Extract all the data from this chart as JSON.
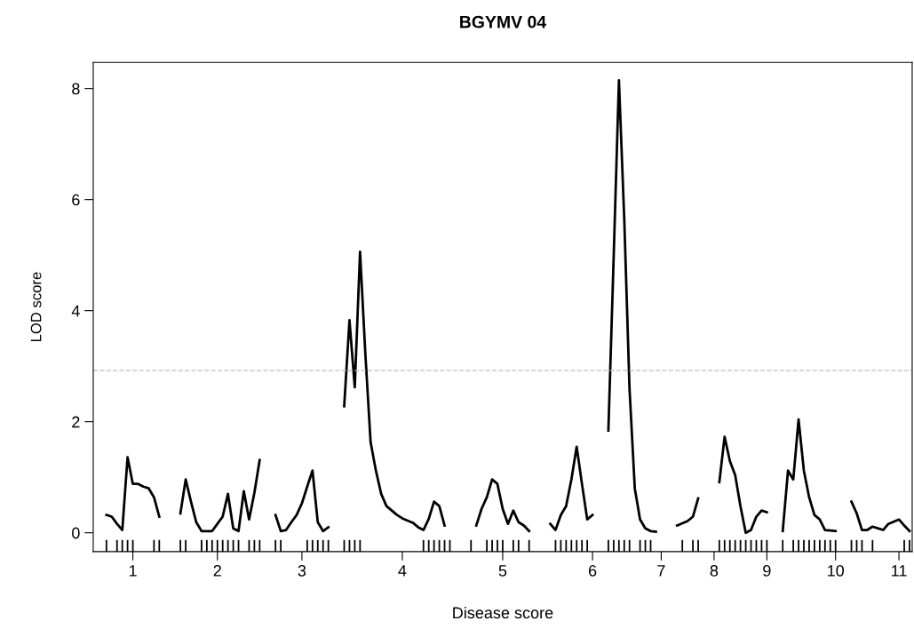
{
  "chart_data": {
    "type": "line",
    "title": "BGYMV 04",
    "xlabel": "Disease score",
    "ylabel": "LOD score",
    "categories": [
      null,
      null,
      null,
      null,
      null,
      null,
      null,
      "1",
      null,
      null,
      null,
      null,
      null,
      null,
      null,
      null,
      null,
      null,
      null,
      null,
      null,
      null,
      null,
      "2",
      null,
      null,
      null,
      null,
      null,
      null,
      null,
      null,
      null,
      null,
      null,
      null,
      null,
      null,
      null,
      "3",
      null,
      null,
      null,
      null,
      null,
      null,
      null,
      null,
      null,
      null,
      null,
      null,
      null,
      null,
      null,
      null,
      null,
      null,
      "4",
      null,
      null,
      null,
      null,
      null,
      null,
      null,
      null,
      null,
      null,
      null,
      null,
      null,
      null,
      null,
      null,
      null,
      null,
      "5",
      null,
      null,
      null,
      null,
      null,
      null,
      null,
      null,
      null,
      null,
      null,
      null,
      null,
      null,
      null,
      null,
      "6",
      null,
      null,
      null,
      null,
      null,
      null,
      null,
      null,
      null,
      null,
      null,
      null,
      "7",
      null,
      null,
      null,
      null,
      null,
      null,
      null,
      null,
      null,
      "8",
      null,
      null,
      null,
      null,
      null,
      null,
      null,
      null,
      null,
      "9",
      null,
      null,
      null,
      null,
      null,
      null,
      null,
      null,
      null,
      null,
      null,
      null,
      "10",
      null,
      null,
      null,
      null,
      null,
      null,
      null,
      null,
      null,
      null,
      null,
      "11",
      null,
      null
    ],
    "ylim": [
      -0.34,
      8.47
    ],
    "yticks": [
      0,
      2,
      4,
      6,
      8
    ],
    "grid": false,
    "marker": "none",
    "line_style": "solid",
    "ref_lines": [
      {
        "axis": "y",
        "value": 2.92,
        "color": "#bebebe",
        "line_style": "dashed"
      }
    ],
    "series": [
      {
        "color": "#000000",
        "values": [
          null,
          null,
          0.32,
          0.29,
          0.16,
          0.05,
          1.36,
          0.88,
          0.88,
          0.83,
          0.8,
          0.64,
          0.29,
          null,
          null,
          null,
          null,
          null,
          null,
          null,
          null,
          null,
          null,
          null,
          null,
          null,
          null,
          null,
          null,
          null,
          null,
          null,
          null,
          null,
          null,
          null,
          null,
          null,
          null,
          null,
          null,
          null,
          null,
          null,
          null,
          null,
          null,
          null,
          null,
          null,
          null,
          null,
          null,
          null,
          null,
          null,
          null,
          null,
          null,
          null,
          null,
          null,
          null,
          null,
          null,
          null,
          null,
          null,
          null,
          null,
          null,
          null,
          null,
          null,
          null,
          null,
          null,
          null,
          null,
          null,
          null,
          null,
          null,
          null,
          null,
          null,
          null,
          null,
          null,
          null,
          null,
          null,
          null,
          null,
          null,
          null,
          null,
          null,
          null,
          null,
          null,
          null,
          null,
          null,
          null,
          null,
          null,
          null,
          null,
          null,
          null,
          null,
          null,
          null,
          null,
          null,
          null,
          null,
          null,
          null,
          null,
          null,
          null,
          null,
          null,
          null,
          null,
          null,
          null,
          null,
          null,
          null,
          null,
          null,
          null,
          null,
          null,
          null,
          null,
          null,
          null,
          null,
          null,
          null,
          null,
          null,
          null,
          null,
          null,
          null,
          null,
          null,
          null,
          null,
          null
        ]
      },
      {
        "color": "#000000",
        "values": [
          null,
          null,
          null,
          null,
          null,
          null,
          null,
          null,
          null,
          null,
          null,
          null,
          null,
          null,
          null,
          null,
          0.35,
          0.96,
          0.56,
          0.19,
          0.03,
          0.03,
          0.03,
          0.16,
          0.29,
          0.7,
          0.08,
          0.03,
          0.75,
          0.24,
          0.72,
          1.31,
          null,
          null,
          null,
          null,
          null,
          null,
          null,
          null,
          null,
          null,
          null,
          null,
          null,
          null,
          null,
          null,
          null,
          null,
          null,
          null,
          null,
          null,
          null,
          null,
          null,
          null,
          null,
          null,
          null,
          null,
          null,
          null,
          null,
          null,
          null,
          null,
          null,
          null,
          null,
          null,
          null,
          null,
          null,
          null,
          null,
          null,
          null,
          null,
          null,
          null,
          null,
          null,
          null,
          null,
          null,
          null,
          null,
          null,
          null,
          null,
          null,
          null,
          null,
          null,
          null,
          null,
          null,
          null,
          null,
          null,
          null,
          null,
          null,
          null,
          null,
          null,
          null,
          null,
          null,
          null,
          null,
          null,
          null,
          null,
          null,
          null,
          null,
          null,
          null,
          null,
          null,
          null,
          null,
          null,
          null,
          null,
          null,
          null,
          null,
          null,
          null,
          null,
          null,
          null,
          null,
          null,
          null,
          null,
          null,
          null,
          null,
          null,
          null,
          null,
          null,
          null,
          null,
          null,
          null,
          null,
          null,
          null,
          null
        ]
      },
      {
        "color": "#000000",
        "values": [
          null,
          null,
          null,
          null,
          null,
          null,
          null,
          null,
          null,
          null,
          null,
          null,
          null,
          null,
          null,
          null,
          null,
          null,
          null,
          null,
          null,
          null,
          null,
          null,
          null,
          null,
          null,
          null,
          null,
          null,
          null,
          null,
          null,
          null,
          0.32,
          0.03,
          0.05,
          0.19,
          0.32,
          0.53,
          0.83,
          1.12,
          0.19,
          0.03,
          0.1,
          null,
          null,
          null,
          null,
          null,
          null,
          null,
          null,
          null,
          null,
          null,
          null,
          null,
          null,
          null,
          null,
          null,
          null,
          null,
          null,
          null,
          null,
          null,
          null,
          null,
          null,
          null,
          null,
          null,
          null,
          null,
          null,
          null,
          null,
          null,
          null,
          null,
          null,
          null,
          null,
          null,
          null,
          null,
          null,
          null,
          null,
          null,
          null,
          null,
          null,
          null,
          null,
          null,
          null,
          null,
          null,
          null,
          null,
          null,
          null,
          null,
          null,
          null,
          null,
          null,
          null,
          null,
          null,
          null,
          null,
          null,
          null,
          null,
          null,
          null,
          null,
          null,
          null,
          null,
          null,
          null,
          null,
          null,
          null,
          null,
          null,
          null,
          null,
          null,
          null,
          null,
          null,
          null,
          null,
          null,
          null,
          null,
          null,
          null,
          null,
          null,
          null,
          null,
          null,
          null,
          null,
          null,
          null,
          null,
          null
        ]
      },
      {
        "color": "#000000",
        "values": [
          null,
          null,
          null,
          null,
          null,
          null,
          null,
          null,
          null,
          null,
          null,
          null,
          null,
          null,
          null,
          null,
          null,
          null,
          null,
          null,
          null,
          null,
          null,
          null,
          null,
          null,
          null,
          null,
          null,
          null,
          null,
          null,
          null,
          null,
          null,
          null,
          null,
          null,
          null,
          null,
          null,
          null,
          null,
          null,
          null,
          null,
          null,
          2.28,
          3.83,
          2.62,
          5.06,
          3.23,
          1.63,
          1.12,
          0.7,
          0.48,
          0.4,
          0.32,
          0.26,
          0.22,
          0.18,
          0.1,
          0.05,
          0.25,
          0.56,
          0.48,
          0.13,
          null,
          null,
          null,
          null,
          null,
          null,
          null,
          null,
          null,
          null,
          null,
          null,
          null,
          null,
          null,
          null,
          null,
          null,
          null,
          null,
          null,
          null,
          null,
          null,
          null,
          null,
          null,
          null,
          null,
          null,
          null,
          null,
          null,
          null,
          null,
          null,
          null,
          null,
          null,
          null,
          null,
          null,
          null,
          null,
          null,
          null,
          null,
          null,
          null,
          null,
          null,
          null,
          null,
          null,
          null,
          null,
          null,
          null,
          null,
          null,
          null,
          null,
          null,
          null,
          null,
          null,
          null,
          null,
          null,
          null,
          null,
          null,
          null,
          null,
          null,
          null,
          null,
          null,
          null,
          null,
          null,
          null,
          null,
          null,
          null,
          null,
          null,
          null
        ]
      },
      {
        "color": "#000000",
        "values": [
          null,
          null,
          null,
          null,
          null,
          null,
          null,
          null,
          null,
          null,
          null,
          null,
          null,
          null,
          null,
          null,
          null,
          null,
          null,
          null,
          null,
          null,
          null,
          null,
          null,
          null,
          null,
          null,
          null,
          null,
          null,
          null,
          null,
          null,
          null,
          null,
          null,
          null,
          null,
          null,
          null,
          null,
          null,
          null,
          null,
          null,
          null,
          null,
          null,
          null,
          null,
          null,
          null,
          null,
          null,
          null,
          null,
          null,
          null,
          null,
          null,
          null,
          null,
          null,
          null,
          null,
          null,
          null,
          null,
          null,
          null,
          null,
          0.13,
          0.43,
          0.64,
          0.96,
          0.88,
          0.43,
          0.16,
          0.4,
          0.19,
          0.13,
          0.03,
          null,
          null,
          null,
          null,
          null,
          null,
          null,
          null,
          null,
          null,
          null,
          null,
          null,
          null,
          null,
          null,
          null,
          null,
          null,
          null,
          null,
          null,
          null,
          null,
          null,
          null,
          null,
          null,
          null,
          null,
          null,
          null,
          null,
          null,
          null,
          null,
          null,
          null,
          null,
          null,
          null,
          null,
          null,
          null,
          null,
          null,
          null,
          null,
          null,
          null,
          null,
          null,
          null,
          null,
          null,
          null,
          null,
          null,
          null,
          null,
          null,
          null,
          null,
          null,
          null,
          null,
          null,
          null,
          null,
          null,
          null,
          null
        ]
      },
      {
        "color": "#000000",
        "values": [
          null,
          null,
          null,
          null,
          null,
          null,
          null,
          null,
          null,
          null,
          null,
          null,
          null,
          null,
          null,
          null,
          null,
          null,
          null,
          null,
          null,
          null,
          null,
          null,
          null,
          null,
          null,
          null,
          null,
          null,
          null,
          null,
          null,
          null,
          null,
          null,
          null,
          null,
          null,
          null,
          null,
          null,
          null,
          null,
          null,
          null,
          null,
          null,
          null,
          null,
          null,
          null,
          null,
          null,
          null,
          null,
          null,
          null,
          null,
          null,
          null,
          null,
          null,
          null,
          null,
          null,
          null,
          null,
          null,
          null,
          null,
          null,
          null,
          null,
          null,
          null,
          null,
          null,
          null,
          null,
          null,
          null,
          null,
          null,
          null,
          null,
          0.16,
          0.05,
          0.32,
          0.48,
          0.96,
          1.55,
          0.88,
          0.24,
          0.32,
          null,
          null,
          null,
          null,
          null,
          null,
          null,
          null,
          null,
          null,
          null,
          null,
          null,
          null,
          null,
          null,
          null,
          null,
          null,
          null,
          null,
          null,
          null,
          null,
          null,
          null,
          null,
          null,
          null,
          null,
          null,
          null,
          null,
          null,
          null,
          null,
          null,
          null,
          null,
          null,
          null,
          null,
          null,
          null,
          null,
          null,
          null,
          null,
          null,
          null,
          null,
          null,
          null,
          null,
          null,
          null,
          null,
          null,
          null,
          null
        ]
      },
      {
        "color": "#000000",
        "values": [
          null,
          null,
          null,
          null,
          null,
          null,
          null,
          null,
          null,
          null,
          null,
          null,
          null,
          null,
          null,
          null,
          null,
          null,
          null,
          null,
          null,
          null,
          null,
          null,
          null,
          null,
          null,
          null,
          null,
          null,
          null,
          null,
          null,
          null,
          null,
          null,
          null,
          null,
          null,
          null,
          null,
          null,
          null,
          null,
          null,
          null,
          null,
          null,
          null,
          null,
          null,
          null,
          null,
          null,
          null,
          null,
          null,
          null,
          null,
          null,
          null,
          null,
          null,
          null,
          null,
          null,
          null,
          null,
          null,
          null,
          null,
          null,
          null,
          null,
          null,
          null,
          null,
          null,
          null,
          null,
          null,
          null,
          null,
          null,
          null,
          null,
          null,
          null,
          null,
          null,
          null,
          null,
          null,
          null,
          null,
          null,
          null,
          1.84,
          4.95,
          8.15,
          5.67,
          2.6,
          0.8,
          0.24,
          0.08,
          0.03,
          0.02,
          null,
          null,
          null,
          null,
          null,
          null,
          null,
          null,
          null,
          null,
          null,
          null,
          null,
          null,
          null,
          null,
          null,
          null,
          null,
          null,
          null,
          null,
          null,
          null,
          null,
          null,
          null,
          null,
          null,
          null,
          null,
          null,
          null,
          null,
          null,
          null,
          null,
          null,
          null,
          null,
          null,
          null,
          null,
          null,
          null,
          null,
          null,
          null
        ]
      },
      {
        "color": "#000000",
        "values": [
          null,
          null,
          null,
          null,
          null,
          null,
          null,
          null,
          null,
          null,
          null,
          null,
          null,
          null,
          null,
          null,
          null,
          null,
          null,
          null,
          null,
          null,
          null,
          null,
          null,
          null,
          null,
          null,
          null,
          null,
          null,
          null,
          null,
          null,
          null,
          null,
          null,
          null,
          null,
          null,
          null,
          null,
          null,
          null,
          null,
          null,
          null,
          null,
          null,
          null,
          null,
          null,
          null,
          null,
          null,
          null,
          null,
          null,
          null,
          null,
          null,
          null,
          null,
          null,
          null,
          null,
          null,
          null,
          null,
          null,
          null,
          null,
          null,
          null,
          null,
          null,
          null,
          null,
          null,
          null,
          null,
          null,
          null,
          null,
          null,
          null,
          null,
          null,
          null,
          null,
          null,
          null,
          null,
          null,
          null,
          null,
          null,
          null,
          null,
          null,
          null,
          null,
          null,
          null,
          null,
          null,
          null,
          null,
          null,
          null,
          0.13,
          0.17,
          0.21,
          0.29,
          0.62,
          null,
          null,
          null,
          null,
          null,
          null,
          null,
          null,
          null,
          null,
          null,
          null,
          null,
          null,
          null,
          null,
          null,
          null,
          null,
          null,
          null,
          null,
          null,
          null,
          null,
          null,
          null,
          null,
          null,
          null,
          null,
          null,
          null,
          null,
          null,
          null,
          null,
          null,
          null,
          null
        ]
      },
      {
        "color": "#000000",
        "values": [
          null,
          null,
          null,
          null,
          null,
          null,
          null,
          null,
          null,
          null,
          null,
          null,
          null,
          null,
          null,
          null,
          null,
          null,
          null,
          null,
          null,
          null,
          null,
          null,
          null,
          null,
          null,
          null,
          null,
          null,
          null,
          null,
          null,
          null,
          null,
          null,
          null,
          null,
          null,
          null,
          null,
          null,
          null,
          null,
          null,
          null,
          null,
          null,
          null,
          null,
          null,
          null,
          null,
          null,
          null,
          null,
          null,
          null,
          null,
          null,
          null,
          null,
          null,
          null,
          null,
          null,
          null,
          null,
          null,
          null,
          null,
          null,
          null,
          null,
          null,
          null,
          null,
          null,
          null,
          null,
          null,
          null,
          null,
          null,
          null,
          null,
          null,
          null,
          null,
          null,
          null,
          null,
          null,
          null,
          null,
          null,
          null,
          null,
          null,
          null,
          null,
          null,
          null,
          null,
          null,
          null,
          null,
          null,
          null,
          null,
          null,
          null,
          null,
          null,
          null,
          null,
          null,
          null,
          0.91,
          1.73,
          1.29,
          1.04,
          0.48,
          0,
          0.05,
          0.29,
          0.4,
          0.37,
          null,
          null,
          null,
          null,
          null,
          null,
          null,
          null,
          null,
          null,
          null,
          null,
          null,
          null,
          null,
          null,
          null,
          null,
          null,
          null,
          null,
          null,
          null,
          null,
          null,
          null,
          null
        ]
      },
      {
        "color": "#000000",
        "values": [
          null,
          null,
          null,
          null,
          null,
          null,
          null,
          null,
          null,
          null,
          null,
          null,
          null,
          null,
          null,
          null,
          null,
          null,
          null,
          null,
          null,
          null,
          null,
          null,
          null,
          null,
          null,
          null,
          null,
          null,
          null,
          null,
          null,
          null,
          null,
          null,
          null,
          null,
          null,
          null,
          null,
          null,
          null,
          null,
          null,
          null,
          null,
          null,
          null,
          null,
          null,
          null,
          null,
          null,
          null,
          null,
          null,
          null,
          null,
          null,
          null,
          null,
          null,
          null,
          null,
          null,
          null,
          null,
          null,
          null,
          null,
          null,
          null,
          null,
          null,
          null,
          null,
          null,
          null,
          null,
          null,
          null,
          null,
          null,
          null,
          null,
          null,
          null,
          null,
          null,
          null,
          null,
          null,
          null,
          null,
          null,
          null,
          null,
          null,
          null,
          null,
          null,
          null,
          null,
          null,
          null,
          null,
          null,
          null,
          null,
          null,
          null,
          null,
          null,
          null,
          null,
          null,
          null,
          null,
          null,
          null,
          null,
          null,
          null,
          null,
          null,
          null,
          null,
          null,
          null,
          0.03,
          1.12,
          0.96,
          2.04,
          1.12,
          0.64,
          0.32,
          0.24,
          0.05,
          0.04,
          0.03,
          null,
          null,
          null,
          null,
          null,
          null,
          null,
          null,
          null,
          null,
          null,
          null,
          null,
          null
        ]
      },
      {
        "color": "#000000",
        "values": [
          null,
          null,
          null,
          null,
          null,
          null,
          null,
          null,
          null,
          null,
          null,
          null,
          null,
          null,
          null,
          null,
          null,
          null,
          null,
          null,
          null,
          null,
          null,
          null,
          null,
          null,
          null,
          null,
          null,
          null,
          null,
          null,
          null,
          null,
          null,
          null,
          null,
          null,
          null,
          null,
          null,
          null,
          null,
          null,
          null,
          null,
          null,
          null,
          null,
          null,
          null,
          null,
          null,
          null,
          null,
          null,
          null,
          null,
          null,
          null,
          null,
          null,
          null,
          null,
          null,
          null,
          null,
          null,
          null,
          null,
          null,
          null,
          null,
          null,
          null,
          null,
          null,
          null,
          null,
          null,
          null,
          null,
          null,
          null,
          null,
          null,
          null,
          null,
          null,
          null,
          null,
          null,
          null,
          null,
          null,
          null,
          null,
          null,
          null,
          null,
          null,
          null,
          null,
          null,
          null,
          null,
          null,
          null,
          null,
          null,
          null,
          null,
          null,
          null,
          null,
          null,
          null,
          null,
          null,
          null,
          null,
          null,
          null,
          null,
          null,
          null,
          null,
          null,
          null,
          null,
          null,
          null,
          null,
          null,
          null,
          null,
          null,
          null,
          null,
          null,
          null,
          null,
          null,
          0.56,
          0.35,
          0.05,
          0.05,
          0.11,
          0.08,
          0.05,
          0.16,
          0.2,
          0.24,
          0.13,
          0.03
        ]
      },
      {
        "type": "bar",
        "color": "#000000",
        "values": [
          null,
          null,
          0.21,
          null,
          0.21,
          0.21,
          0.21,
          0.21,
          null,
          null,
          null,
          0.21,
          0.21,
          null,
          null,
          null,
          0.21,
          0.21,
          null,
          null,
          0.21,
          0.21,
          0.21,
          0.21,
          0.21,
          0.21,
          0.21,
          0.21,
          null,
          0.21,
          0.21,
          0.21,
          null,
          null,
          0.21,
          0.21,
          null,
          null,
          null,
          null,
          0.21,
          0.21,
          0.21,
          0.21,
          0.21,
          null,
          null,
          0.21,
          0.21,
          0.21,
          0.21,
          null,
          null,
          null,
          null,
          null,
          null,
          null,
          null,
          null,
          null,
          null,
          0.21,
          0.21,
          0.21,
          0.21,
          0.21,
          0.21,
          null,
          null,
          null,
          0.21,
          null,
          null,
          0.21,
          0.21,
          0.21,
          0.21,
          null,
          0.21,
          0.21,
          null,
          0.21,
          null,
          null,
          null,
          null,
          0.21,
          0.21,
          0.21,
          0.21,
          0.21,
          0.21,
          0.21,
          null,
          null,
          null,
          0.21,
          0.21,
          0.21,
          0.21,
          0.21,
          null,
          0.21,
          0.21,
          0.21,
          null,
          null,
          null,
          null,
          null,
          0.21,
          null,
          0.21,
          0.21,
          null,
          null,
          null,
          0.21,
          0.21,
          0.21,
          0.21,
          0.21,
          0.21,
          0.21,
          0.21,
          0.21,
          0.21,
          null,
          null,
          0.21,
          null,
          0.21,
          0.21,
          0.21,
          0.21,
          0.21,
          0.21,
          0.21,
          0.21,
          0.21,
          null,
          null,
          0.21,
          0.21,
          0.21,
          null,
          0.21,
          null,
          null,
          null,
          null,
          null,
          0.21,
          0.21
        ],
        "base": [
          null,
          null,
          -0.34,
          null,
          -0.34,
          -0.34,
          -0.34,
          -0.34,
          null,
          null,
          null,
          -0.34,
          -0.34,
          null,
          null,
          null,
          -0.34,
          -0.34,
          null,
          null,
          -0.34,
          -0.34,
          -0.34,
          -0.34,
          -0.34,
          -0.34,
          -0.34,
          -0.34,
          null,
          -0.34,
          -0.34,
          -0.34,
          null,
          null,
          -0.34,
          -0.34,
          null,
          null,
          null,
          null,
          -0.34,
          -0.34,
          -0.34,
          -0.34,
          -0.34,
          null,
          null,
          -0.34,
          -0.34,
          -0.34,
          -0.34,
          null,
          null,
          null,
          null,
          null,
          null,
          null,
          null,
          null,
          null,
          null,
          -0.34,
          -0.34,
          -0.34,
          -0.34,
          -0.34,
          -0.34,
          null,
          null,
          null,
          -0.34,
          null,
          null,
          -0.34,
          -0.34,
          -0.34,
          -0.34,
          null,
          -0.34,
          -0.34,
          null,
          -0.34,
          null,
          null,
          null,
          null,
          -0.34,
          -0.34,
          -0.34,
          -0.34,
          -0.34,
          -0.34,
          -0.34,
          null,
          null,
          null,
          -0.34,
          -0.34,
          -0.34,
          -0.34,
          -0.34,
          null,
          -0.34,
          -0.34,
          -0.34,
          null,
          null,
          null,
          null,
          null,
          -0.34,
          null,
          -0.34,
          -0.34,
          null,
          null,
          null,
          -0.34,
          -0.34,
          -0.34,
          -0.34,
          -0.34,
          -0.34,
          -0.34,
          -0.34,
          -0.34,
          -0.34,
          null,
          null,
          -0.34,
          null,
          -0.34,
          -0.34,
          -0.34,
          -0.34,
          -0.34,
          -0.34,
          -0.34,
          -0.34,
          -0.34,
          null,
          null,
          -0.34,
          -0.34,
          -0.34,
          null,
          -0.34,
          null,
          null,
          null,
          null,
          null,
          -0.34,
          -0.34
        ]
      }
    ]
  }
}
